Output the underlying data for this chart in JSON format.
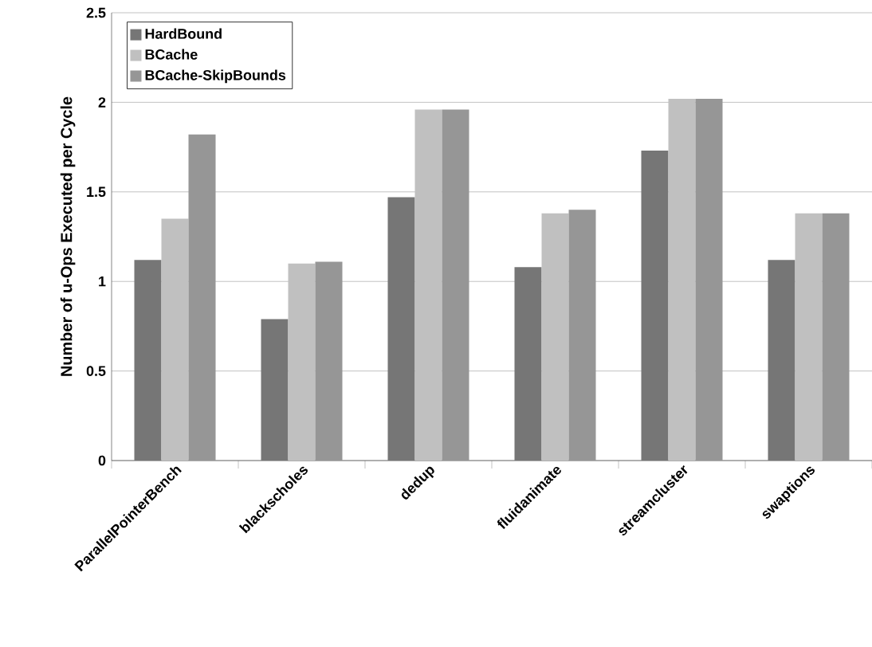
{
  "chart_data": {
    "type": "bar",
    "ylabel": "Number of u-Ops Executed per Cycle",
    "categories": [
      "ParallelPointerBench",
      "blackscholes",
      "dedup",
      "fluidanimate",
      "streamcluster",
      "swaptions"
    ],
    "series": [
      {
        "name": "HardBound",
        "color": "#767676",
        "values": [
          1.12,
          0.79,
          1.47,
          1.08,
          1.73,
          1.12
        ]
      },
      {
        "name": "BCache",
        "color": "#c0c0c0",
        "values": [
          1.35,
          1.1,
          1.96,
          1.38,
          2.02,
          1.38
        ]
      },
      {
        "name": "BCache-SkipBounds",
        "color": "#969696",
        "values": [
          1.82,
          1.11,
          1.96,
          1.4,
          2.02,
          1.38
        ]
      }
    ],
    "ylim": [
      0,
      2.5
    ],
    "yticks": [
      0,
      0.5,
      1,
      1.5,
      2,
      2.5
    ],
    "grid": "y",
    "legend": "top left"
  }
}
